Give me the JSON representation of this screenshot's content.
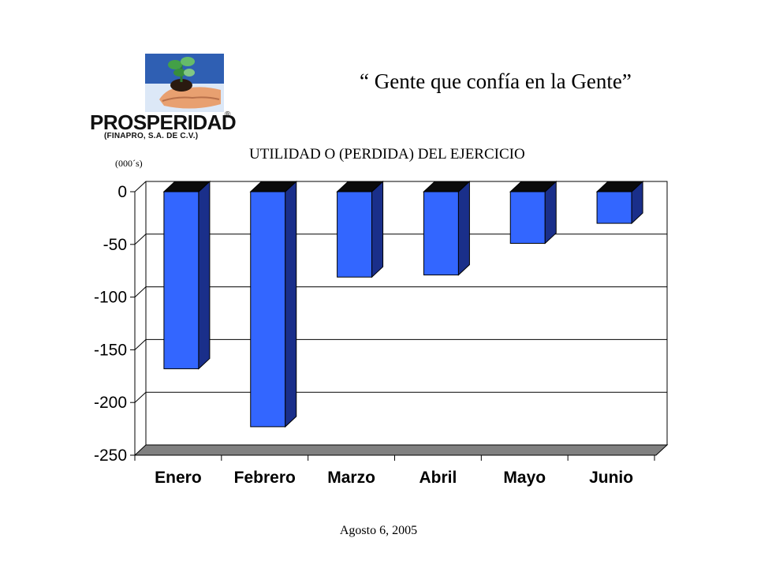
{
  "logo": {
    "wordmark": "PROSPERIDAD",
    "registered": "®",
    "subtitle": "(FINAPRO, S.A. DE C.V.)"
  },
  "slogan": "“ Gente que confía en la Gente”",
  "footer": "Agosto 6, 2005",
  "colors": {
    "bar_front": "#3366ff",
    "bar_side": "#1a2f8a",
    "bar_top": "#0a0a0a",
    "floor": "#808080"
  },
  "chart_data": {
    "type": "bar",
    "title": "UTILIDAD O (PERDIDA) DEL EJERCICIO",
    "ylabel": "(000´s)",
    "xlabel": "",
    "categories": [
      "Enero",
      "Febrero",
      "Marzo",
      "Abril",
      "Mayo",
      "Junio"
    ],
    "values": [
      -168,
      -223,
      -81,
      -79,
      -49,
      -30
    ],
    "ylim": [
      -250,
      0
    ],
    "yticks": [
      "0",
      "-50",
      "-100",
      "-150",
      "-200",
      "-250"
    ],
    "grid": true,
    "legend": "none",
    "style": "3d"
  }
}
